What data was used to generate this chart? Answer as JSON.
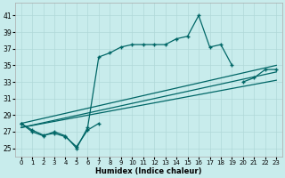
{
  "xlabel": "Humidex (Indice chaleur)",
  "background_color": "#c8ecec",
  "grid_color": "#b0d8d8",
  "line_color": "#006666",
  "xlim": [
    -0.5,
    23.5
  ],
  "ylim": [
    24,
    42.5
  ],
  "yticks": [
    25,
    27,
    29,
    31,
    33,
    35,
    37,
    39,
    41
  ],
  "xticks": [
    0,
    1,
    2,
    3,
    4,
    5,
    6,
    7,
    8,
    9,
    10,
    11,
    12,
    13,
    14,
    15,
    16,
    17,
    18,
    19,
    20,
    21,
    22,
    23
  ],
  "line1_y": [
    28,
    27,
    26.5,
    27,
    26.5,
    25,
    27.5,
    36,
    36.5,
    37.2,
    37.5,
    37.5,
    37.5,
    37.5,
    38.2,
    38.5,
    41,
    37.2,
    37.5,
    35,
    null,
    null,
    null,
    null
  ],
  "line2_y": [
    28,
    27.2,
    26.6,
    26.8,
    26.4,
    25.2,
    27.2,
    28.0,
    null,
    null,
    null,
    null,
    null,
    null,
    null,
    null,
    null,
    null,
    null,
    null,
    null,
    null,
    null,
    null
  ],
  "line3_y": [
    27.5,
    null,
    null,
    null,
    null,
    null,
    null,
    null,
    null,
    null,
    null,
    null,
    null,
    null,
    null,
    null,
    null,
    null,
    null,
    null,
    33.0,
    33.5,
    34.5,
    34.5
  ],
  "line4_y": [
    27.5,
    null,
    null,
    null,
    null,
    null,
    null,
    null,
    null,
    null,
    null,
    null,
    null,
    null,
    null,
    null,
    null,
    null,
    null,
    null,
    null,
    null,
    null,
    null
  ],
  "straight_lines": [
    {
      "x0": 0,
      "y0": 28.0,
      "x1": 23,
      "y1": 35.0
    },
    {
      "x0": 0,
      "y0": 27.5,
      "x1": 23,
      "y1": 34.2
    },
    {
      "x0": 0,
      "y0": 27.5,
      "x1": 23,
      "y1": 33.2
    }
  ]
}
